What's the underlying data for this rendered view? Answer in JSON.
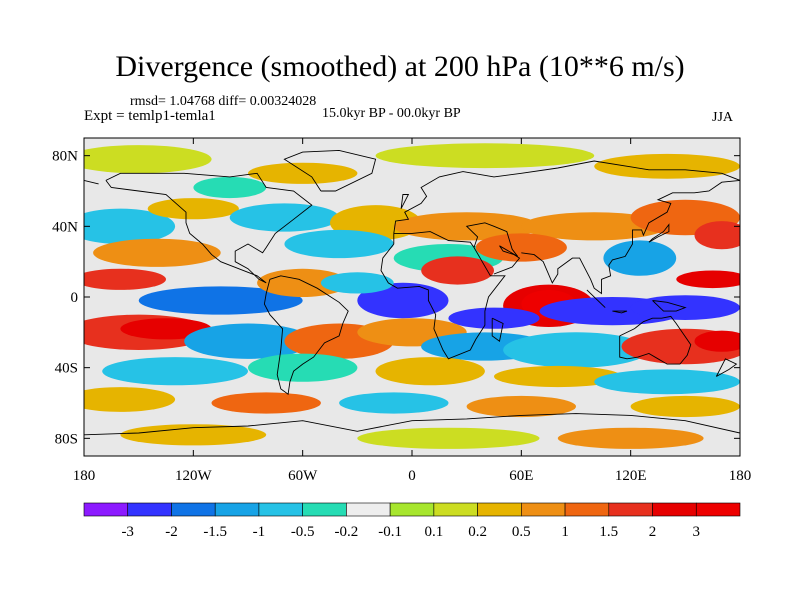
{
  "title": "Divergence (smoothed) at 200 hPa (10**6 m/s)",
  "stats": "rmsd= 1.04768 diff= 0.00324028",
  "experiment": "Expt = temlp1-temla1",
  "period": "15.0kyr BP - 00.0kyr BP",
  "season": "JJA",
  "axes": {
    "lat_ticks": [
      "80N",
      "40N",
      "0",
      "40S",
      "80S"
    ],
    "lon_ticks": [
      "180",
      "120W",
      "60W",
      "0",
      "60E",
      "120E",
      "180"
    ]
  },
  "colorbar": {
    "labels": [
      "-3",
      "-2",
      "-1.5",
      "-1",
      "-0.5",
      "-0.2",
      "-0.1",
      "0.1",
      "0.2",
      "0.5",
      "1",
      "1.5",
      "2",
      "3"
    ],
    "colors": [
      "#8c1aff",
      "#3333ff",
      "#0f73e6",
      "#17a3e6",
      "#26c2e6",
      "#26dcb4",
      "#eeeeee",
      "#a7e62e",
      "#ccdd22",
      "#e6b400",
      "#ee8f14",
      "#ef6611",
      "#e7301e",
      "#e60000",
      "#ee0000"
    ]
  },
  "colors": {
    "background": "#ffffff",
    "coastline": "#000000",
    "neutral": "#e8e8e8"
  }
}
